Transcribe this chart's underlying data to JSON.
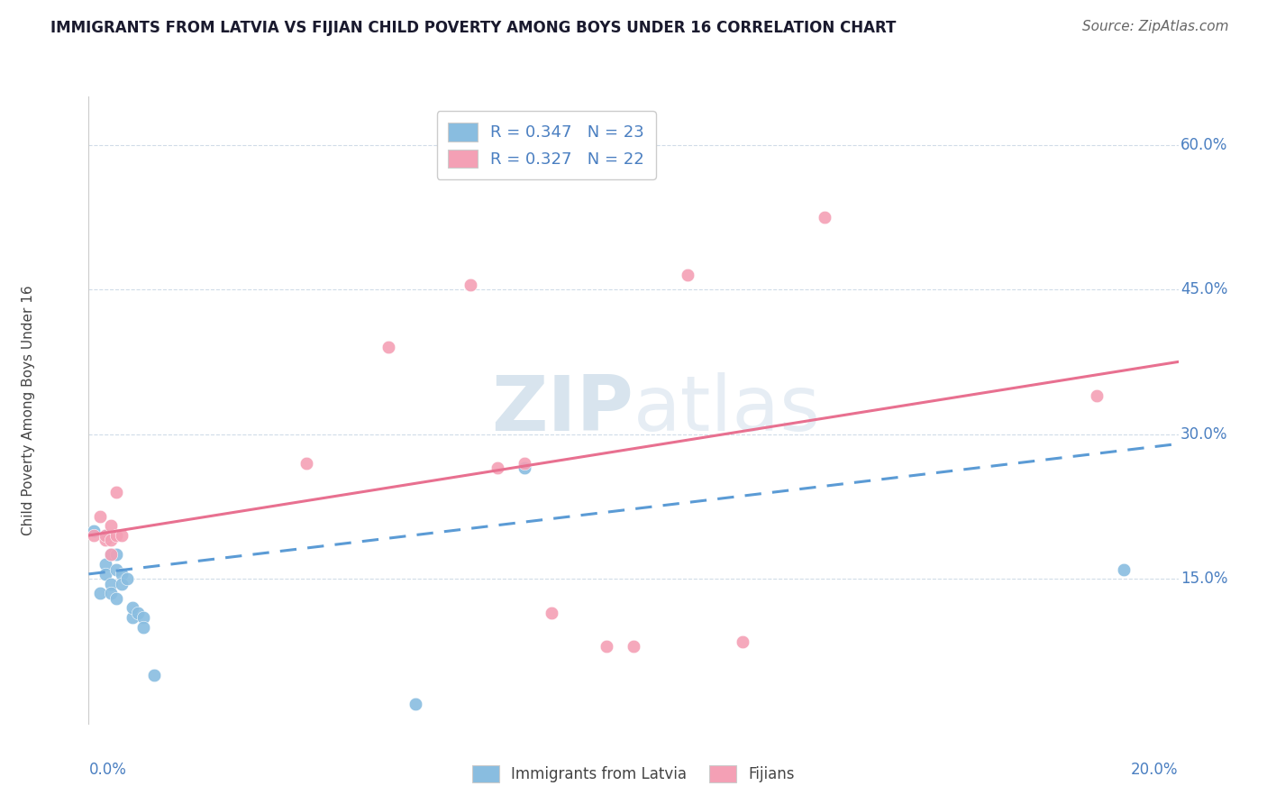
{
  "title": "IMMIGRANTS FROM LATVIA VS FIJIAN CHILD POVERTY AMONG BOYS UNDER 16 CORRELATION CHART",
  "source": "Source: ZipAtlas.com",
  "ylabel": "Child Poverty Among Boys Under 16",
  "xlabel_bottom_left": "0.0%",
  "xlabel_bottom_right": "20.0%",
  "ytick_labels": [
    "15.0%",
    "30.0%",
    "45.0%",
    "60.0%"
  ],
  "ytick_values": [
    0.15,
    0.3,
    0.45,
    0.6
  ],
  "xlim": [
    0.0,
    0.2
  ],
  "ylim": [
    0.0,
    0.65
  ],
  "legend1_entries": [
    {
      "label": "R = 0.347   N = 23",
      "color": "#89bde0"
    },
    {
      "label": "R = 0.327   N = 22",
      "color": "#f4a0b5"
    }
  ],
  "watermark": "ZIPatlas",
  "blue_color": "#89bde0",
  "pink_color": "#f4a0b5",
  "blue_line_color": "#5b9bd5",
  "pink_line_color": "#e87090",
  "blue_scatter": [
    [
      0.001,
      0.2
    ],
    [
      0.002,
      0.135
    ],
    [
      0.003,
      0.165
    ],
    [
      0.003,
      0.195
    ],
    [
      0.003,
      0.155
    ],
    [
      0.004,
      0.175
    ],
    [
      0.004,
      0.145
    ],
    [
      0.004,
      0.135
    ],
    [
      0.005,
      0.16
    ],
    [
      0.005,
      0.175
    ],
    [
      0.005,
      0.13
    ],
    [
      0.006,
      0.155
    ],
    [
      0.006,
      0.145
    ],
    [
      0.007,
      0.15
    ],
    [
      0.008,
      0.11
    ],
    [
      0.008,
      0.12
    ],
    [
      0.009,
      0.115
    ],
    [
      0.01,
      0.11
    ],
    [
      0.01,
      0.1
    ],
    [
      0.012,
      0.05
    ],
    [
      0.06,
      0.02
    ],
    [
      0.08,
      0.265
    ],
    [
      0.19,
      0.16
    ]
  ],
  "pink_scatter": [
    [
      0.001,
      0.195
    ],
    [
      0.002,
      0.215
    ],
    [
      0.003,
      0.19
    ],
    [
      0.003,
      0.195
    ],
    [
      0.004,
      0.205
    ],
    [
      0.004,
      0.175
    ],
    [
      0.004,
      0.19
    ],
    [
      0.005,
      0.195
    ],
    [
      0.005,
      0.24
    ],
    [
      0.006,
      0.195
    ],
    [
      0.04,
      0.27
    ],
    [
      0.055,
      0.39
    ],
    [
      0.07,
      0.455
    ],
    [
      0.075,
      0.265
    ],
    [
      0.08,
      0.27
    ],
    [
      0.085,
      0.115
    ],
    [
      0.095,
      0.08
    ],
    [
      0.1,
      0.08
    ],
    [
      0.11,
      0.465
    ],
    [
      0.12,
      0.085
    ],
    [
      0.135,
      0.525
    ],
    [
      0.185,
      0.34
    ]
  ],
  "blue_trendline": [
    [
      0.0,
      0.155
    ],
    [
      0.2,
      0.29
    ]
  ],
  "pink_trendline": [
    [
      0.0,
      0.195
    ],
    [
      0.2,
      0.375
    ]
  ],
  "axis_color": "#4a7fc1",
  "grid_color": "#d0dce8",
  "title_color": "#1a1a2e",
  "bg_color": "#ffffff"
}
